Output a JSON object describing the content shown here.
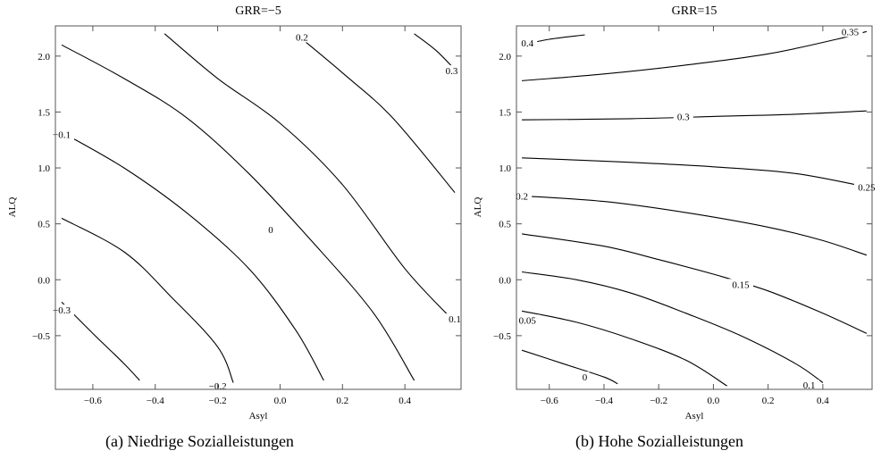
{
  "chart_data": [
    {
      "type": "contour",
      "title": "GRR=−5",
      "xlabel": "Asyl",
      "ylabel": "ALQ",
      "caption": "(a) Niedrige Sozialleistungen",
      "xlim": [
        -0.72,
        0.58
      ],
      "ylim": [
        -0.98,
        2.27
      ],
      "xticks": [
        -0.6,
        -0.4,
        -0.2,
        0.0,
        0.2,
        0.4
      ],
      "xtick_labels": [
        "−0.6",
        "−0.4",
        "−0.2",
        "0.0",
        "0.2",
        "0.4"
      ],
      "yticks": [
        -0.5,
        0.0,
        0.5,
        1.0,
        1.5,
        2.0
      ],
      "ytick_labels": [
        "−0.5",
        "0.0",
        "0.5",
        "1.0",
        "1.5",
        "2.0"
      ],
      "grid": false,
      "contours": [
        {
          "label": "0.3",
          "label_at": [
            0.55,
            1.87
          ],
          "points": [
            [
              0.43,
              2.2
            ],
            [
              0.5,
              2.05
            ],
            [
              0.56,
              1.88
            ]
          ]
        },
        {
          "label": "0.2",
          "label_at": [
            0.07,
            2.17
          ],
          "points": [
            [
              0.05,
              2.2
            ],
            [
              0.2,
              1.85
            ],
            [
              0.36,
              1.45
            ],
            [
              0.56,
              0.78
            ]
          ]
        },
        {
          "label": "0.1",
          "label_at": [
            0.56,
            -0.35
          ],
          "points": [
            [
              -0.37,
              2.2
            ],
            [
              -0.2,
              1.8
            ],
            [
              0.0,
              1.4
            ],
            [
              0.2,
              0.85
            ],
            [
              0.4,
              0.1
            ],
            [
              0.55,
              -0.35
            ]
          ]
        },
        {
          "label": "0",
          "label_at": [
            -0.03,
            0.45
          ],
          "points": [
            [
              -0.7,
              2.1
            ],
            [
              -0.5,
              1.8
            ],
            [
              -0.3,
              1.45
            ],
            [
              -0.1,
              0.95
            ],
            [
              0.1,
              0.35
            ],
            [
              0.3,
              -0.3
            ],
            [
              0.43,
              -0.9
            ]
          ]
        },
        {
          "label": "−0.1",
          "label_at": [
            -0.7,
            1.3
          ],
          "points": [
            [
              -0.7,
              1.32
            ],
            [
              -0.5,
              1.0
            ],
            [
              -0.3,
              0.6
            ],
            [
              -0.1,
              0.1
            ],
            [
              0.05,
              -0.45
            ],
            [
              0.14,
              -0.9
            ]
          ]
        },
        {
          "label": "−0.2",
          "label_at": [
            -0.2,
            -0.95
          ],
          "points": [
            [
              -0.7,
              0.55
            ],
            [
              -0.5,
              0.25
            ],
            [
              -0.35,
              -0.15
            ],
            [
              -0.2,
              -0.6
            ],
            [
              -0.15,
              -0.92
            ]
          ]
        },
        {
          "label": "−0.3",
          "label_at": [
            -0.7,
            -0.27
          ],
          "points": [
            [
              -0.7,
              -0.2
            ],
            [
              -0.6,
              -0.48
            ],
            [
              -0.5,
              -0.75
            ],
            [
              -0.45,
              -0.9
            ]
          ]
        }
      ]
    },
    {
      "type": "contour",
      "title": "GRR=15",
      "xlabel": "Asyl",
      "ylabel": "ALQ",
      "caption": "(b) Hohe Sozialleistungen",
      "xlim": [
        -0.72,
        0.58
      ],
      "ylim": [
        -0.98,
        2.27
      ],
      "xticks": [
        -0.6,
        -0.4,
        -0.2,
        0.0,
        0.2,
        0.4
      ],
      "xtick_labels": [
        "−0.6",
        "−0.4",
        "−0.2",
        "0.0",
        "0.2",
        "0.4"
      ],
      "yticks": [
        -0.5,
        0.0,
        0.5,
        1.0,
        1.5,
        2.0
      ],
      "ytick_labels": [
        "−0.5",
        "0.0",
        "0.5",
        "1.0",
        "1.5",
        "2.0"
      ],
      "grid": false,
      "contours": [
        {
          "label": "0.4",
          "label_at": [
            -0.68,
            2.12
          ],
          "points": [
            [
              -0.7,
              2.1
            ],
            [
              -0.6,
              2.15
            ],
            [
              -0.47,
              2.19
            ]
          ]
        },
        {
          "label": "0.35",
          "label_at": [
            0.5,
            2.22
          ],
          "points": [
            [
              -0.7,
              1.78
            ],
            [
              -0.4,
              1.84
            ],
            [
              -0.1,
              1.92
            ],
            [
              0.2,
              2.02
            ],
            [
              0.45,
              2.15
            ],
            [
              0.56,
              2.22
            ]
          ]
        },
        {
          "label": "0.3",
          "label_at": [
            -0.11,
            1.46
          ],
          "points": [
            [
              -0.7,
              1.43
            ],
            [
              -0.3,
              1.44
            ],
            [
              0.0,
              1.46
            ],
            [
              0.3,
              1.48
            ],
            [
              0.56,
              1.51
            ]
          ]
        },
        {
          "label": "0.25",
          "label_at": [
            0.56,
            0.83
          ],
          "points": [
            [
              -0.7,
              1.09
            ],
            [
              -0.3,
              1.05
            ],
            [
              0.0,
              1.01
            ],
            [
              0.3,
              0.95
            ],
            [
              0.56,
              0.83
            ]
          ]
        },
        {
          "label": "0.2",
          "label_at": [
            -0.7,
            0.75
          ],
          "points": [
            [
              -0.7,
              0.75
            ],
            [
              -0.4,
              0.7
            ],
            [
              -0.1,
              0.6
            ],
            [
              0.2,
              0.47
            ],
            [
              0.4,
              0.35
            ],
            [
              0.56,
              0.22
            ]
          ]
        },
        {
          "label": "0.15",
          "label_at": [
            0.1,
            -0.04
          ],
          "points": [
            [
              -0.7,
              0.41
            ],
            [
              -0.4,
              0.3
            ],
            [
              -0.2,
              0.18
            ],
            [
              0.0,
              0.05
            ],
            [
              0.2,
              -0.1
            ],
            [
              0.4,
              -0.3
            ],
            [
              0.56,
              -0.48
            ]
          ]
        },
        {
          "label": "0.05",
          "label_at": [
            -0.68,
            -0.36
          ],
          "points": [
            [
              -0.7,
              0.07
            ],
            [
              -0.5,
              0.0
            ],
            [
              -0.3,
              -0.12
            ],
            [
              -0.1,
              -0.3
            ],
            [
              0.1,
              -0.5
            ],
            [
              0.3,
              -0.75
            ],
            [
              0.4,
              -0.92
            ]
          ]
        },
        {
          "label": "0.1",
          "label_at": [
            0.35,
            -0.94
          ],
          "points": [
            [
              -0.7,
              -0.28
            ],
            [
              -0.5,
              -0.38
            ],
            [
              -0.3,
              -0.53
            ],
            [
              -0.1,
              -0.72
            ],
            [
              0.05,
              -0.95
            ]
          ]
        },
        {
          "label": "0",
          "label_at": [
            -0.47,
            -0.87
          ],
          "points": [
            [
              -0.7,
              -0.63
            ],
            [
              -0.55,
              -0.75
            ],
            [
              -0.4,
              -0.87
            ],
            [
              -0.35,
              -0.93
            ]
          ]
        }
      ]
    }
  ]
}
